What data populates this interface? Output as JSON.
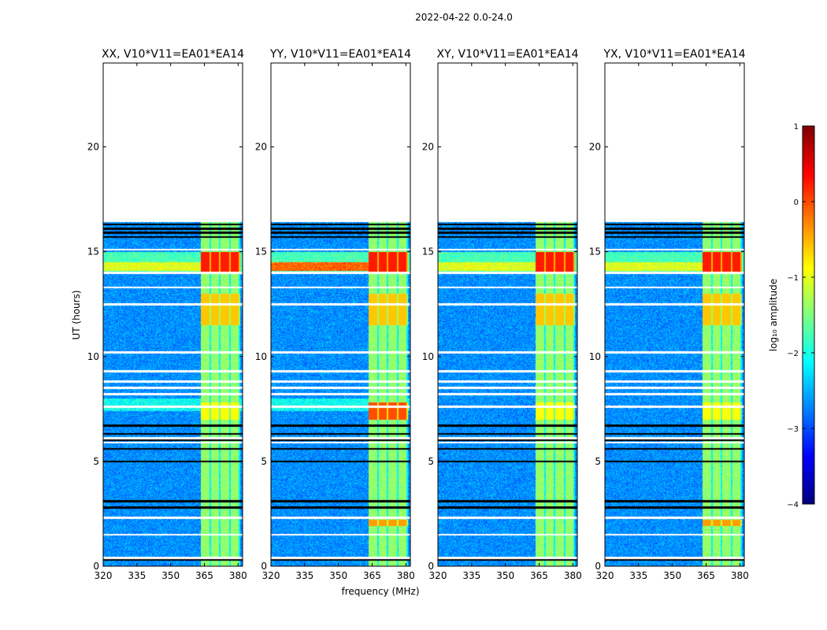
{
  "suptitle": "2022-04-22 0.0-24.0",
  "chart_data": {
    "type": "heatmap",
    "xlabel": "frequency (MHz)",
    "ylabel": "UT (hours)",
    "xlim": [
      320,
      382
    ],
    "ylim": [
      0,
      24
    ],
    "xticks": [
      320,
      335,
      350,
      365,
      380
    ],
    "yticks": [
      0,
      5,
      10,
      15,
      20
    ],
    "panels": [
      {
        "title": "XX, V10*V11=EA01*EA14",
        "variant": 0
      },
      {
        "title": "YY, V10*V11=EA01*EA14",
        "variant": 1
      },
      {
        "title": "XY, V10*V11=EA01*EA14",
        "variant": 2
      },
      {
        "title": "YX, V10*V11=EA01*EA14",
        "variant": 3
      }
    ],
    "colorbar": {
      "label": "log₁₀ amplitude",
      "min": -4,
      "max": 1,
      "ticks": [
        1,
        0,
        -1,
        -2,
        -3,
        -4
      ],
      "colormap": "jet"
    },
    "data_end_hour": 16.4,
    "bright_band_mhz": [
      363.5,
      381
    ],
    "blank_hours": [
      0.4,
      1.5,
      2.3,
      5.9,
      6.1,
      7.6,
      8.2,
      8.5,
      8.8,
      9.3,
      10.2,
      12.5,
      13.3,
      14.0,
      15.1
    ],
    "flag_hours": [
      0.3,
      2.8,
      3.1,
      5.0,
      5.6,
      6.0,
      6.3,
      6.7,
      15.7,
      15.9,
      16.1,
      16.3
    ]
  },
  "colors": {
    "axis": "#000000",
    "background": "#ffffff"
  }
}
